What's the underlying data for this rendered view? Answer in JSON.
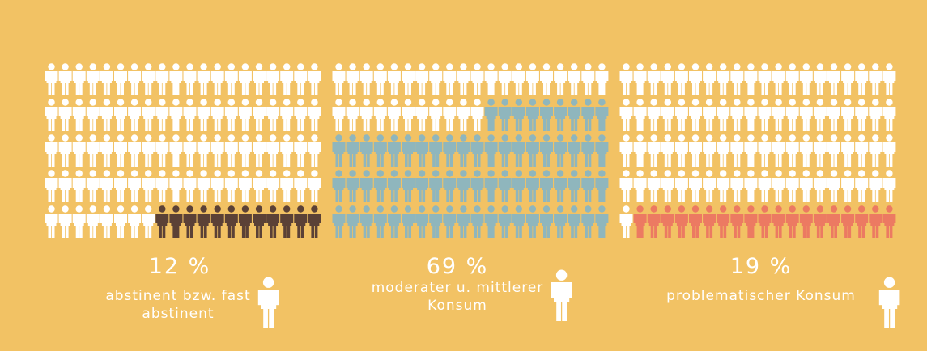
{
  "chart_data": {
    "type": "pictogram",
    "categories": [
      "abstinent bzw. fast abstinent",
      "moderater u. mittlerer Konsum",
      "problematischer Konsum"
    ],
    "values": [
      12,
      69,
      19
    ],
    "value_labels": [
      "12 %",
      "69 %",
      "19 %"
    ],
    "colors": [
      "#5b4136",
      "#8fb6bd",
      "#ec7a62"
    ],
    "base_color": "#ffffff",
    "background": "#f2c264"
  }
}
